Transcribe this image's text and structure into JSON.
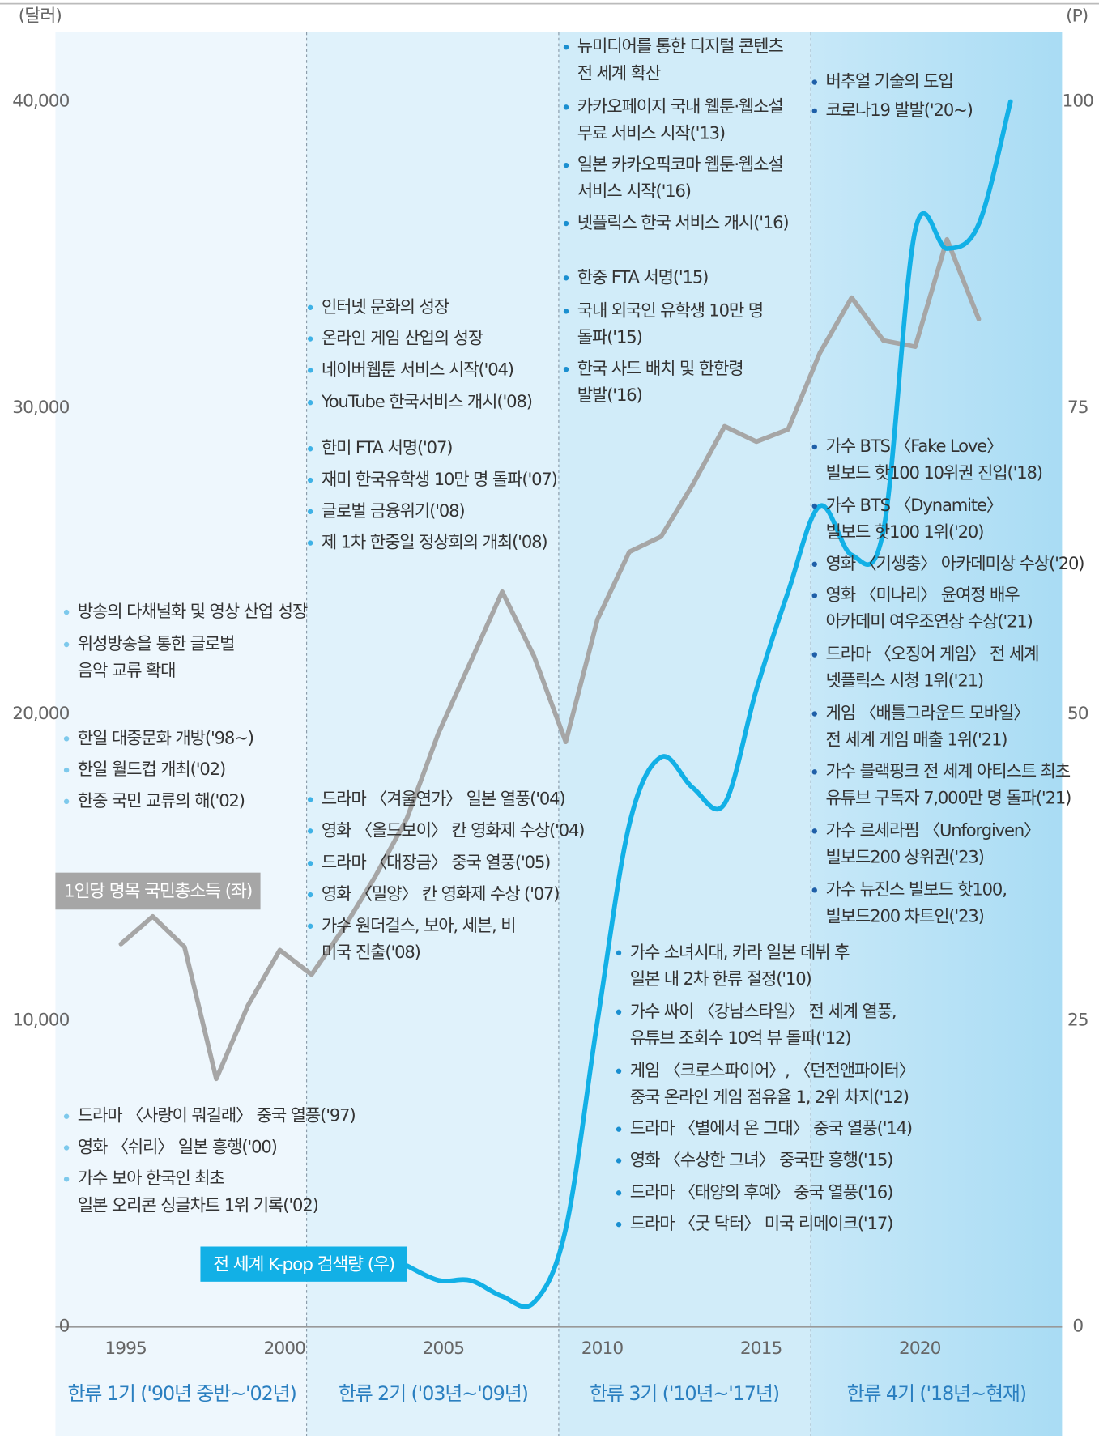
{
  "chart_data": {
    "type": "line",
    "y_unit": "(달러)",
    "y2_unit": "(P)",
    "xlim": [
      1992.3,
      2024.2
    ],
    "xticks": [
      1995,
      2000,
      2005,
      2010,
      2015,
      2020
    ],
    "ylim": [
      0,
      40000
    ],
    "yticks": [
      0,
      {
        "value": 10000,
        "label": "10,000"
      },
      {
        "value": 20000,
        "label": "20,000"
      },
      {
        "value": 30000,
        "label": "30,000"
      },
      {
        "value": 40000,
        "label": "40,000"
      }
    ],
    "y2lim": [
      0,
      100
    ],
    "y2ticks": [
      0,
      25,
      50,
      75,
      100
    ],
    "series": [
      {
        "name": "1인당 명목 국민총소득 (좌)",
        "color": "#a6a6a6",
        "x": [
          1995,
          1996,
          1997,
          1998,
          1999,
          2000,
          2001,
          2002,
          2003,
          2004,
          2005,
          2006,
          2007,
          2008,
          2009,
          2010,
          2011,
          2012,
          2013,
          2014,
          2015,
          2016,
          2017,
          2018,
          2019,
          2020,
          2021,
          2022
        ],
        "values": [
          12500,
          13400,
          12400,
          8100,
          10500,
          12300,
          11500,
          13000,
          14700,
          16600,
          19400,
          21700,
          24000,
          21900,
          19100,
          23100,
          25300,
          25800,
          27500,
          29400,
          28900,
          29300,
          31800,
          33600,
          32200,
          32000,
          35500,
          32900
        ]
      },
      {
        "name": "전 세계 K-pop 검색량 (우)",
        "color": "#12b0e6",
        "axis": "y2",
        "x": [
          2004,
          2005,
          2006,
          2007,
          2008,
          2009,
          2010,
          2011,
          2012,
          2013,
          2014,
          2015,
          2016,
          2017,
          2018,
          2019,
          2020,
          2021,
          2022,
          2023
        ],
        "values": [
          5,
          3.8,
          3.8,
          2.5,
          2,
          8,
          25,
          41,
          46.5,
          44,
          42.7,
          52,
          60,
          67,
          63,
          65,
          89.5,
          88,
          90,
          100
        ]
      }
    ],
    "eras": [
      "한류 1기 ('90년 중반~'02년)",
      "한류 2기 ('03년~'09년)",
      "한류 3기 ('10년~'17년)",
      "한류 4기 ('18년~현재)"
    ],
    "annotations": [
      {
        "items": [
          [
            "방송의 다채널화 및 영상 산업 성장"
          ],
          [
            "위성방송을 통한 글로벌",
            "음악 교류 확대"
          ]
        ]
      },
      {
        "items": [
          [
            "한일 대중문화 개방('98~)"
          ],
          [
            "한일 월드컵 개최('02)"
          ],
          [
            "한중 국민 교류의 해('02)"
          ]
        ]
      },
      {
        "items": [
          [
            "드라마 〈사랑이 뭐길래〉 중국 열풍('97)"
          ],
          [
            "영화 〈쉬리〉 일본 흥행('00)"
          ],
          [
            "가수 보아 한국인 최초",
            "일본 오리콘 싱글차트 1위 기록('02)"
          ]
        ]
      },
      {
        "items": [
          [
            "인터넷 문화의 성장"
          ],
          [
            "온라인 게임 산업의 성장"
          ],
          [
            "네이버웹툰 서비스 시작('04)"
          ],
          [
            "YouTube 한국서비스 개시('08)"
          ],
          [
            "한미 FTA 서명('07)"
          ],
          [
            "재미 한국유학생 10만 명 돌파('07)"
          ],
          [
            "글로벌 금융위기('08)"
          ],
          [
            "제 1차 한중일 정상회의 개최('08)"
          ]
        ]
      },
      {
        "items": [
          [
            "드라마 〈겨울연가〉 일본 열풍('04)"
          ],
          [
            "영화 〈올드보이〉 칸 영화제 수상('04)"
          ],
          [
            "드라마 〈대장금〉 중국 열풍('05)"
          ],
          [
            "영화 〈밀양〉 칸 영화제 수상 ('07)"
          ],
          [
            "가수 원더걸스, 보아, 세븐, 비",
            "미국 진출('08)"
          ]
        ]
      },
      {
        "items": [
          [
            "뉴미디어를 통한 디지털 콘텐츠",
            "전 세계 확산"
          ],
          [
            "카카오페이지 국내 웹툰·웹소설",
            "무료 서비스 시작('13)"
          ],
          [
            "일본 카카오픽코마 웹툰·웹소설",
            "서비스 시작('16)"
          ],
          [
            "넷플릭스 한국 서비스 개시('16)"
          ],
          [
            "한중 FTA 서명('15)"
          ],
          [
            "국내 외국인 유학생 10만 명",
            "돌파('15)"
          ],
          [
            "한국 사드 배치 및 한한령",
            "발발('16)"
          ]
        ]
      },
      {
        "items": [
          [
            "가수 소녀시대, 카라 일본 데뷔 후",
            "일본 내 2차 한류 절정('10)"
          ],
          [
            "가수 싸이 〈강남스타일〉 전 세계 열풍,",
            "유튜브 조회수 10억 뷰 돌파('12)"
          ],
          [
            "게임 〈크로스파이어〉, 〈던전앤파이터〉",
            "중국 온라인 게임 점유율 1, 2위 차지('12)"
          ],
          [
            "드라마 〈별에서 온 그대〉 중국 열풍('14)"
          ],
          [
            "영화 〈수상한 그녀〉 중국판 흥행('15)"
          ],
          [
            "드라마 〈태양의 후예〉 중국 열풍('16)"
          ],
          [
            "드라마 〈굿 닥터〉 미국 리메이크('17)"
          ]
        ]
      },
      {
        "items": [
          [
            "버추얼 기술의 도입"
          ],
          [
            "코로나19 발발('20~)"
          ],
          [
            "가수 BTS 〈Fake Love〉",
            "빌보드 핫100 10위권 진입('18)"
          ],
          [
            "가수 BTS 〈Dynamite〉",
            "빌보드 핫100 1위('20)"
          ],
          [
            "영화 〈기생충〉 아카데미상 수상('20)"
          ],
          [
            "영화 〈미나리〉 윤여정 배우",
            "아카데미 여우조연상 수상('21)"
          ],
          [
            "드라마 〈오징어 게임〉 전 세계",
            "넷플릭스 시청 1위('21)"
          ],
          [
            "게임 〈배틀그라운드 모바일〉",
            "전 세계 게임 매출 1위('21)"
          ],
          [
            "가수 블랙핑크 전 세계 아티스트 최초",
            "유튜브 구독자 7,000만 명 돌파('21)"
          ],
          [
            "가수 르세라핌 〈Unforgiven〉",
            "빌보드200 상위권('23)"
          ],
          [
            "가수 뉴진스 빌보드 핫100,",
            "빌보드200 차트인('23)"
          ]
        ]
      }
    ]
  }
}
